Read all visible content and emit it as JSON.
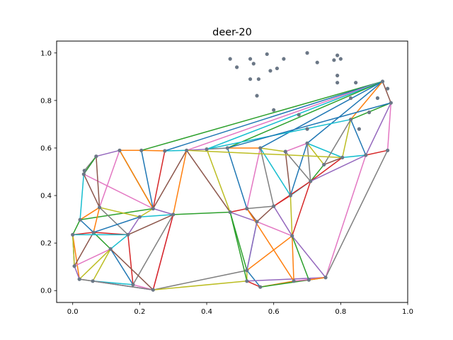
{
  "chart_data": {
    "type": "scatter",
    "title": "deer-20",
    "xlabel": "",
    "ylabel": "",
    "xlim": [
      -0.048,
      1.0
    ],
    "ylim": [
      -0.05,
      1.05
    ],
    "xticks": [
      "0.0",
      "0.2",
      "0.4",
      "0.6",
      "0.8",
      "1.0"
    ],
    "yticks": [
      "0.0",
      "0.2",
      "0.4",
      "0.6",
      "0.8",
      "1.0"
    ],
    "grid": false,
    "point_color": "#6b7786",
    "edge_colors": [
      "#1f77b4",
      "#ff7f0e",
      "#2ca02c",
      "#d62728",
      "#9467bd",
      "#8c564b",
      "#e377c2",
      "#7f7f7f",
      "#bcbd22",
      "#17becf"
    ],
    "points": [
      [
        0.0,
        0.235
      ],
      [
        0.005,
        0.103
      ],
      [
        0.02,
        0.048
      ],
      [
        0.022,
        0.298
      ],
      [
        0.033,
        0.49
      ],
      [
        0.035,
        0.505
      ],
      [
        0.06,
        0.04
      ],
      [
        0.062,
        0.245
      ],
      [
        0.07,
        0.565
      ],
      [
        0.08,
        0.35
      ],
      [
        0.113,
        0.175
      ],
      [
        0.14,
        0.59
      ],
      [
        0.165,
        0.235
      ],
      [
        0.18,
        0.025
      ],
      [
        0.2,
        0.31
      ],
      [
        0.205,
        0.59
      ],
      [
        0.24,
        0.345
      ],
      [
        0.24,
        0.003
      ],
      [
        0.275,
        0.588
      ],
      [
        0.3,
        0.32
      ],
      [
        0.34,
        0.59
      ],
      [
        0.4,
        0.595
      ],
      [
        0.462,
        0.6
      ],
      [
        0.47,
        0.33
      ],
      [
        0.52,
        0.345
      ],
      [
        0.52,
        0.085
      ],
      [
        0.52,
        0.04
      ],
      [
        0.55,
        0.29
      ],
      [
        0.56,
        0.6
      ],
      [
        0.56,
        0.015
      ],
      [
        0.6,
        0.355
      ],
      [
        0.635,
        0.585
      ],
      [
        0.65,
        0.4
      ],
      [
        0.655,
        0.23
      ],
      [
        0.66,
        0.04
      ],
      [
        0.7,
        0.62
      ],
      [
        0.705,
        0.045
      ],
      [
        0.71,
        0.46
      ],
      [
        0.75,
        0.53
      ],
      [
        0.755,
        0.055
      ],
      [
        0.805,
        0.56
      ],
      [
        0.83,
        0.72
      ],
      [
        0.875,
        0.57
      ],
      [
        0.925,
        0.88
      ],
      [
        0.94,
        0.59
      ],
      [
        0.95,
        0.79
      ],
      [
        0.47,
        0.975
      ],
      [
        0.49,
        0.94
      ],
      [
        0.53,
        0.975
      ],
      [
        0.54,
        0.955
      ],
      [
        0.555,
        0.89
      ],
      [
        0.58,
        0.995
      ],
      [
        0.59,
        0.925
      ],
      [
        0.61,
        0.935
      ],
      [
        0.63,
        0.975
      ],
      [
        0.7,
        1.0
      ],
      [
        0.73,
        0.96
      ],
      [
        0.78,
        0.97
      ],
      [
        0.79,
        0.99
      ],
      [
        0.8,
        0.975
      ],
      [
        0.79,
        0.905
      ],
      [
        0.79,
        0.875
      ],
      [
        0.845,
        0.875
      ],
      [
        0.83,
        0.81
      ],
      [
        0.91,
        0.81
      ],
      [
        0.94,
        0.85
      ],
      [
        0.6,
        0.76
      ],
      [
        0.675,
        0.74
      ],
      [
        0.7,
        0.68
      ],
      [
        0.855,
        0.68
      ],
      [
        0.885,
        0.75
      ],
      [
        0.53,
        0.89
      ],
      [
        0.55,
        0.82
      ]
    ],
    "edges": [
      [
        0,
        1
      ],
      [
        0,
        2
      ],
      [
        0,
        3
      ],
      [
        0,
        7
      ],
      [
        1,
        2
      ],
      [
        1,
        7
      ],
      [
        1,
        10
      ],
      [
        2,
        6
      ],
      [
        2,
        10
      ],
      [
        3,
        4
      ],
      [
        3,
        7
      ],
      [
        3,
        9
      ],
      [
        3,
        16
      ],
      [
        4,
        5
      ],
      [
        4,
        8
      ],
      [
        4,
        9
      ],
      [
        4,
        16
      ],
      [
        5,
        8
      ],
      [
        6,
        10
      ],
      [
        6,
        13
      ],
      [
        6,
        17
      ],
      [
        7,
        9
      ],
      [
        7,
        10
      ],
      [
        7,
        12
      ],
      [
        8,
        11
      ],
      [
        8,
        9
      ],
      [
        9,
        11
      ],
      [
        9,
        12
      ],
      [
        9,
        14
      ],
      [
        10,
        12
      ],
      [
        10,
        13
      ],
      [
        11,
        15
      ],
      [
        11,
        16
      ],
      [
        12,
        13
      ],
      [
        12,
        14
      ],
      [
        12,
        19
      ],
      [
        13,
        17
      ],
      [
        13,
        19
      ],
      [
        14,
        16
      ],
      [
        14,
        19
      ],
      [
        15,
        16
      ],
      [
        15,
        18
      ],
      [
        15,
        43
      ],
      [
        16,
        18
      ],
      [
        16,
        19
      ],
      [
        16,
        20
      ],
      [
        17,
        19
      ],
      [
        17,
        25
      ],
      [
        17,
        26
      ],
      [
        18,
        20
      ],
      [
        18,
        43
      ],
      [
        19,
        20
      ],
      [
        19,
        23
      ],
      [
        19,
        17
      ],
      [
        20,
        21
      ],
      [
        20,
        23
      ],
      [
        20,
        43
      ],
      [
        21,
        22
      ],
      [
        21,
        23
      ],
      [
        21,
        43
      ],
      [
        22,
        24
      ],
      [
        22,
        28
      ],
      [
        22,
        43
      ],
      [
        23,
        24
      ],
      [
        23,
        27
      ],
      [
        24,
        27
      ],
      [
        24,
        28
      ],
      [
        24,
        30
      ],
      [
        25,
        26
      ],
      [
        25,
        27
      ],
      [
        25,
        29
      ],
      [
        25,
        33
      ],
      [
        25,
        23
      ],
      [
        26,
        29
      ],
      [
        26,
        39
      ],
      [
        27,
        30
      ],
      [
        27,
        33
      ],
      [
        28,
        30
      ],
      [
        28,
        31
      ],
      [
        28,
        32
      ],
      [
        28,
        43
      ],
      [
        29,
        34
      ],
      [
        29,
        39
      ],
      [
        30,
        32
      ],
      [
        30,
        33
      ],
      [
        31,
        32
      ],
      [
        31,
        35
      ],
      [
        31,
        37
      ],
      [
        32,
        33
      ],
      [
        32,
        37
      ],
      [
        32,
        35
      ],
      [
        33,
        34
      ],
      [
        33,
        36
      ],
      [
        33,
        37
      ],
      [
        33,
        39
      ],
      [
        34,
        36
      ],
      [
        34,
        39
      ],
      [
        35,
        37
      ],
      [
        35,
        38
      ],
      [
        35,
        40
      ],
      [
        35,
        43
      ],
      [
        36,
        39
      ],
      [
        37,
        38
      ],
      [
        37,
        40
      ],
      [
        37,
        42
      ],
      [
        38,
        40
      ],
      [
        39,
        42
      ],
      [
        39,
        44
      ],
      [
        40,
        41
      ],
      [
        40,
        42
      ],
      [
        41,
        42
      ],
      [
        41,
        43
      ],
      [
        41,
        45
      ],
      [
        42,
        44
      ],
      [
        42,
        45
      ],
      [
        43,
        45
      ],
      [
        44,
        45
      ],
      [
        41,
        38
      ],
      [
        20,
        40
      ],
      [
        21,
        41
      ],
      [
        22,
        45
      ],
      [
        24,
        34
      ],
      [
        23,
        26
      ],
      [
        30,
        37
      ],
      [
        27,
        25
      ],
      [
        10,
        17
      ],
      [
        6,
        17
      ],
      [
        2,
        17
      ],
      [
        1,
        0
      ],
      [
        0,
        12
      ],
      [
        14,
        7
      ],
      [
        16,
        11
      ],
      [
        8,
        4
      ]
    ]
  }
}
